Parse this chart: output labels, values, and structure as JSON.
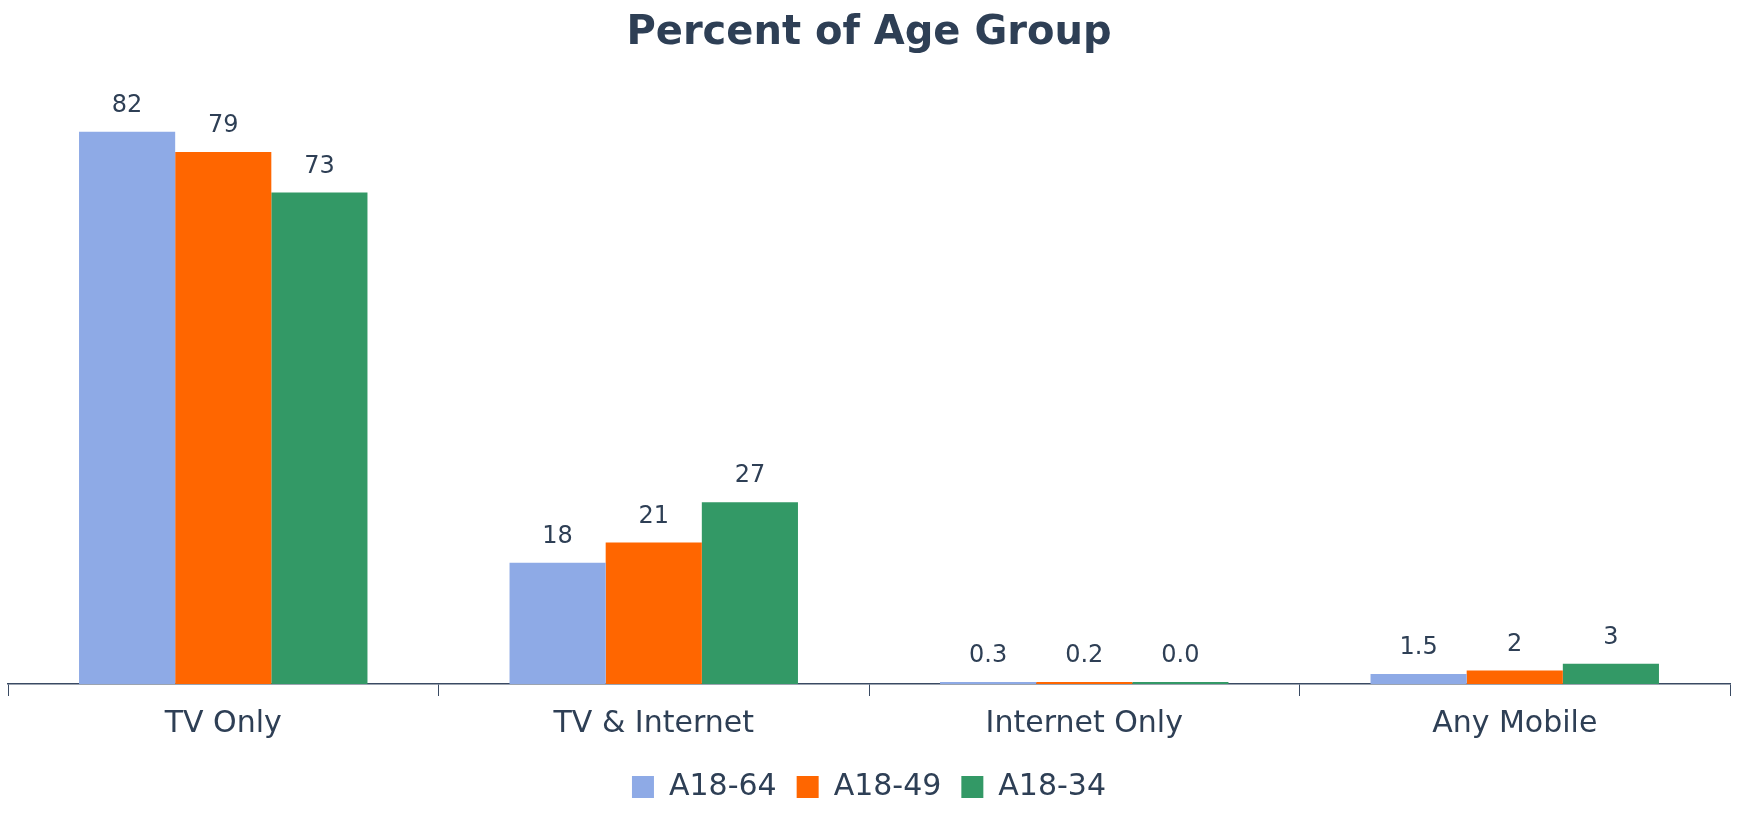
{
  "chart_data": {
    "type": "bar",
    "title": "Percent of Age Group",
    "categories": [
      "TV Only",
      "TV & Internet",
      "Internet Only",
      "Any Mobile"
    ],
    "series": [
      {
        "name": "A18-64",
        "color": "#8eaae6",
        "values": [
          82,
          18,
          0.3,
          1.5
        ],
        "value_labels": [
          "82",
          "18",
          "0.3",
          "1.5"
        ]
      },
      {
        "name": "A18-49",
        "color": "#ff6600",
        "values": [
          79,
          21,
          0.2,
          2
        ],
        "value_labels": [
          "79",
          "21",
          "0.2",
          "2"
        ]
      },
      {
        "name": "A18-34",
        "color": "#339966",
        "values": [
          73,
          27,
          0,
          3
        ],
        "value_labels": [
          "73",
          "27",
          "0.0",
          "3"
        ]
      }
    ],
    "legend": "bottom"
  }
}
